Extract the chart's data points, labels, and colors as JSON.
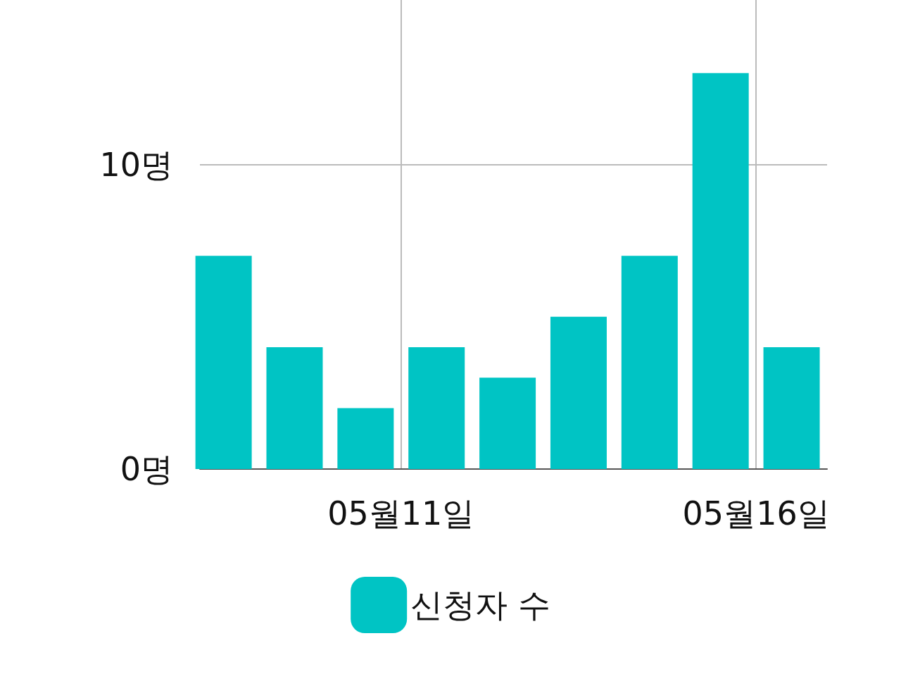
{
  "chart_data": {
    "type": "bar",
    "x": [
      "--05-08T12:00",
      "--05-09T12:00",
      "--05-10T12:00",
      "--05-11T12:00",
      "--05-12T12:00",
      "--05-13T12:00",
      "--05-14T12:00",
      "--05-15T12:00",
      "--05-16T12:00"
    ],
    "series": [
      {
        "name": "신청자 수",
        "color": "#00c4c4",
        "values": [
          7,
          4,
          2,
          4,
          3,
          5,
          7,
          13,
          4
        ]
      }
    ],
    "xlim": [
      "--05-08T04:00",
      "--05-17T00:00"
    ],
    "xticks": [
      {
        "value": "--05-11",
        "label": "05월11일"
      },
      {
        "value": "--05-16",
        "label": "05월16일"
      }
    ],
    "ylim": [
      0,
      15.4
    ],
    "yticks": [
      {
        "value": 0,
        "label": "0명"
      },
      {
        "value": 10,
        "label": "10명"
      }
    ],
    "grid": true,
    "legend": "bottom"
  }
}
